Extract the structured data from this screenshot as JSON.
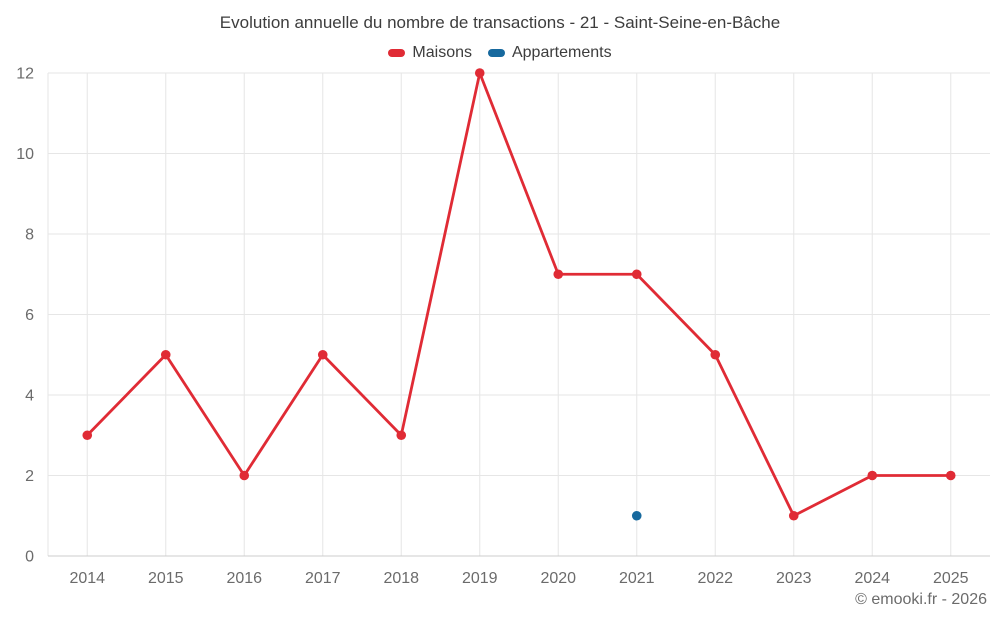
{
  "title": "Evolution annuelle du nombre de transactions - 21 - Saint-Seine-en-Bâche",
  "copyright": "© emooki.fr - 2026",
  "legend": [
    {
      "label": "Maisons",
      "color": "#e02b35"
    },
    {
      "label": "Appartements",
      "color": "#17699e"
    }
  ],
  "colors": {
    "background": "#ffffff",
    "grid": "#e6e6e6",
    "axis_line": "#cccccc",
    "tick_label": "#6b6b6b",
    "title_text": "#3d3d3d",
    "maisons": "#e02b35",
    "appartements": "#17699e"
  },
  "chart_data": {
    "type": "line",
    "title": "Evolution annuelle du nombre de transactions - 21 - Saint-Seine-en-Bâche",
    "x": [
      2014,
      2015,
      2016,
      2017,
      2018,
      2019,
      2020,
      2021,
      2022,
      2023,
      2024,
      2025
    ],
    "series": [
      {
        "name": "Maisons",
        "color": "#e02b35",
        "values": [
          3,
          5,
          2,
          5,
          3,
          12,
          7,
          7,
          5,
          1,
          2,
          2
        ]
      },
      {
        "name": "Appartements",
        "color": "#17699e",
        "values": [
          null,
          null,
          null,
          null,
          null,
          null,
          null,
          1,
          null,
          null,
          null,
          null
        ]
      }
    ],
    "xlabel": "",
    "ylabel": "",
    "ylim": [
      0,
      12
    ],
    "yticks": [
      0,
      2,
      4,
      6,
      8,
      10,
      12
    ],
    "grid": true,
    "legend_position": "top"
  }
}
